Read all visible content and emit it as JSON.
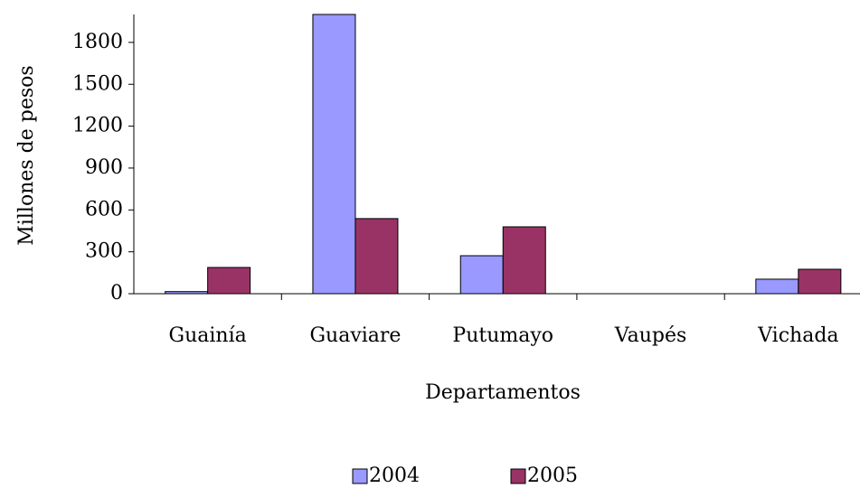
{
  "chart_data": {
    "type": "bar",
    "y_label": "Millones de pesos",
    "x_label": "Departamentos",
    "categories": [
      "Guainía",
      "Guaviare",
      "Putumayo",
      "Vaupés",
      "Vichada"
    ],
    "series": [
      {
        "name": "2004",
        "color": "#9999ff",
        "values": [
          15,
          2000,
          272,
          0,
          104
        ]
      },
      {
        "name": "2005",
        "color": "#993366",
        "values": [
          188,
          538,
          479,
          0,
          175
        ]
      }
    ],
    "ylim": [
      0,
      2000
    ],
    "yticks": [
      0,
      300,
      600,
      900,
      1200,
      1500,
      1800
    ],
    "grid": false,
    "legend": "bottom"
  }
}
